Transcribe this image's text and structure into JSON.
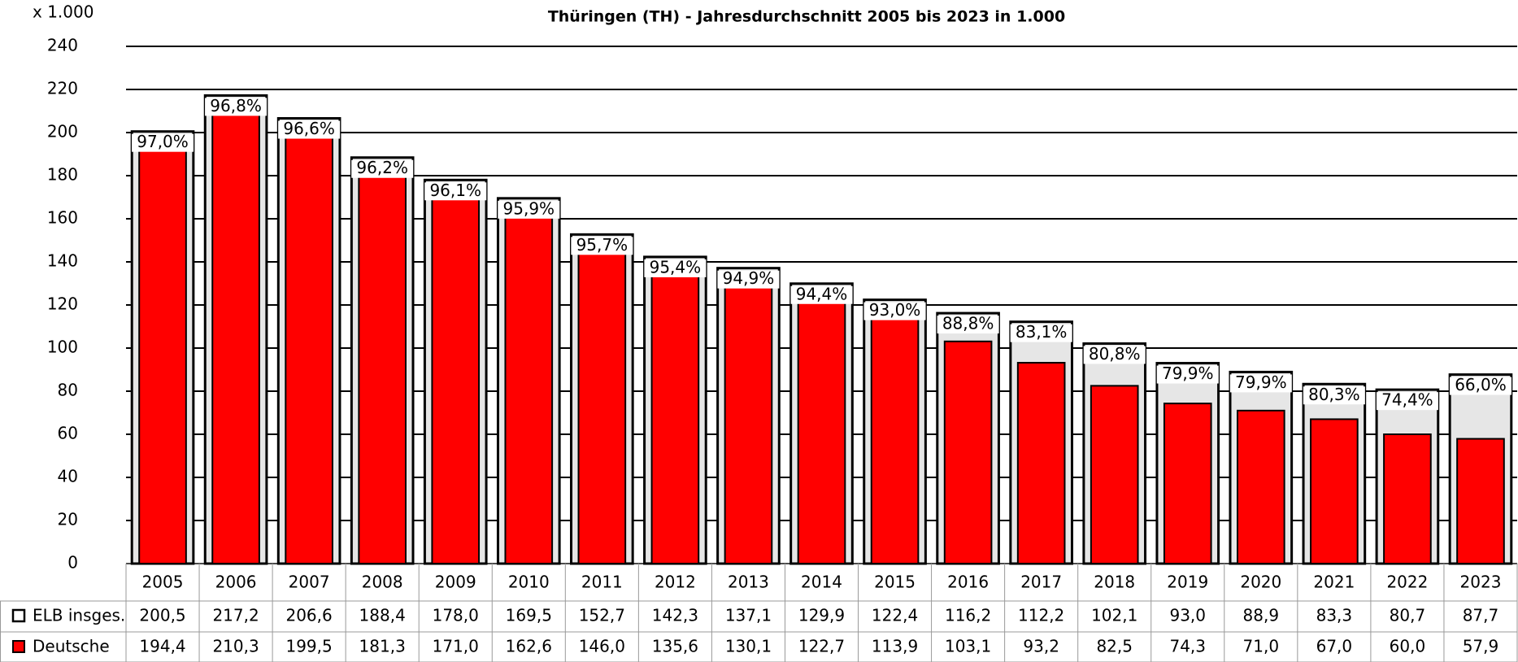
{
  "chart_data": {
    "type": "bar",
    "title": "Thüringen (TH) - Jahresdurchschnitt 2005 bis 2023 in 1.000",
    "y_unit_label": "x 1.000",
    "categories": [
      "2005",
      "2006",
      "2007",
      "2008",
      "2009",
      "2010",
      "2011",
      "2012",
      "2013",
      "2014",
      "2015",
      "2016",
      "2017",
      "2018",
      "2019",
      "2020",
      "2021",
      "2022",
      "2023"
    ],
    "series": [
      {
        "name": "ELB insges.",
        "color": "#ffffff",
        "values": [
          200.5,
          217.2,
          206.6,
          188.4,
          178.0,
          169.5,
          152.7,
          142.3,
          137.1,
          129.9,
          122.4,
          116.2,
          112.2,
          102.1,
          93.0,
          88.9,
          83.3,
          80.7,
          87.7
        ],
        "value_labels": [
          "200,5",
          "217,2",
          "206,6",
          "188,4",
          "178,0",
          "169,5",
          "152,7",
          "142,3",
          "137,1",
          "129,9",
          "122,4",
          "116,2",
          "112,2",
          "102,1",
          "93,0",
          "88,9",
          "83,3",
          "80,7",
          "87,7"
        ]
      },
      {
        "name": "Deutsche",
        "color": "#ff0000",
        "values": [
          194.4,
          210.3,
          199.5,
          181.3,
          171.0,
          162.6,
          146.0,
          135.6,
          130.1,
          122.7,
          113.9,
          103.1,
          93.2,
          82.5,
          74.3,
          71.0,
          67.0,
          60.0,
          57.9
        ],
        "value_labels": [
          "194,4",
          "210,3",
          "199,5",
          "181,3",
          "171,0",
          "162,6",
          "146,0",
          "135,6",
          "130,1",
          "122,7",
          "113,9",
          "103,1",
          "93,2",
          "82,5",
          "74,3",
          "71,0",
          "67,0",
          "60,0",
          "57,9"
        ]
      }
    ],
    "shares": {
      "values": [
        97.0,
        96.8,
        96.6,
        96.2,
        96.1,
        95.9,
        95.7,
        95.4,
        94.9,
        94.4,
        93.0,
        88.8,
        83.1,
        80.8,
        79.9,
        79.9,
        80.3,
        74.4,
        66.0
      ],
      "value_labels": [
        "97,0%",
        "96,8%",
        "96,6%",
        "96,2%",
        "96,1%",
        "95,9%",
        "95,7%",
        "95,4%",
        "94,9%",
        "94,4%",
        "93,0%",
        "88,8%",
        "83,1%",
        "80,8%",
        "79,9%",
        "79,9%",
        "80,3%",
        "74,4%",
        "66,0%"
      ]
    },
    "ylim": [
      0,
      240
    ],
    "yticks": [
      0,
      20,
      40,
      60,
      80,
      100,
      120,
      140,
      160,
      180,
      200,
      220,
      240
    ],
    "grid": true
  }
}
